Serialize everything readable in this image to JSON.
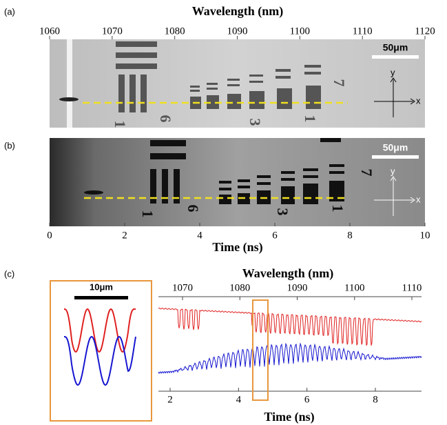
{
  "panel_a": {
    "label": "(a)",
    "axis_title": "Wavelength (nm)",
    "ticks": [
      1060,
      1070,
      1080,
      1090,
      1100,
      1110,
      1120
    ],
    "scale_bar": "50μm",
    "axis_y": "y",
    "axis_x": "x",
    "image_digits": [
      "1",
      "6",
      "3",
      "1",
      "7"
    ]
  },
  "panel_b": {
    "label": "(b)",
    "scale_bar": "50μm",
    "axis_y": "y",
    "axis_x": "x",
    "image_digits": [
      "1",
      "6",
      "3",
      "1",
      "7"
    ],
    "ticks": [
      0,
      2,
      4,
      6,
      8,
      10
    ],
    "axis_title": "Time (ns)"
  },
  "panel_c": {
    "label": "(c)",
    "inset_scale_bar": "10μm",
    "top_axis_title": "Wavelength (nm)",
    "top_ticks": [
      1070,
      1080,
      1090,
      1100,
      1110
    ],
    "bottom_ticks": [
      2,
      4,
      6,
      8
    ],
    "bottom_axis_title": "Time (ns)"
  }
}
